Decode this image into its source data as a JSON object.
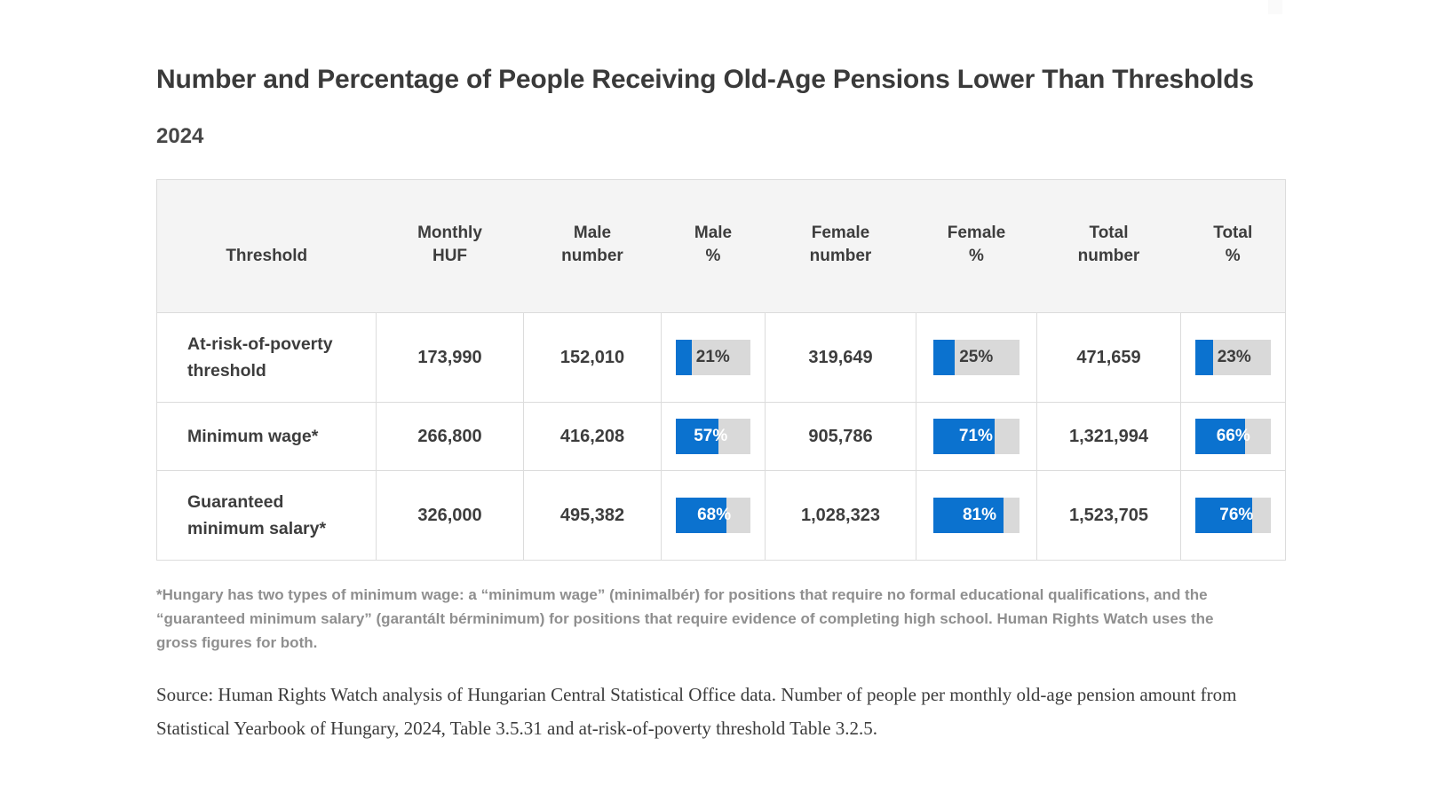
{
  "page": {
    "title": "Number and Percentage of People Receiving Old-Age Pensions Lower Than Thresholds",
    "subtitle": "2024",
    "footnote": "*Hungary has two types of minimum wage: a “minimum wage” (minimalbér) for positions that require no formal educational qualifications, and the “guaranteed minimum salary” (garantált bérminimum) for positions that require evidence of completing high school. Human Rights Watch uses the gross figures for both.",
    "source": "Source: Human Rights Watch analysis of Hungarian Central Statistical Office data. Number of people per monthly old-age pension amount from Statistical Yearbook of Hungary, 2024, Table 3.5.31 and at-risk-of-poverty threshold Table 3.2.5."
  },
  "chart_data": {
    "type": "table",
    "title": "Number and Percentage of People Receiving Old-Age Pensions Lower Than Thresholds",
    "subtitle": "2024",
    "columns": [
      {
        "key": "threshold",
        "label": "Threshold",
        "type": "label"
      },
      {
        "key": "monthly_huf",
        "label": "Monthly\nHUF",
        "type": "number"
      },
      {
        "key": "male_number",
        "label": "Male\nnumber",
        "type": "number"
      },
      {
        "key": "male_pct",
        "label": "Male\n%",
        "type": "percent"
      },
      {
        "key": "female_number",
        "label": "Female\nnumber",
        "type": "number"
      },
      {
        "key": "female_pct",
        "label": "Female\n%",
        "type": "percent"
      },
      {
        "key": "total_number",
        "label": "Total\nnumber",
        "type": "number"
      },
      {
        "key": "total_pct",
        "label": "Total\n%",
        "type": "percent"
      }
    ],
    "rows": [
      {
        "threshold": "At-risk-of-poverty threshold",
        "monthly_huf": "173,990",
        "male_number": "152,010",
        "male_pct": 21,
        "female_number": "319,649",
        "female_pct": 25,
        "total_number": "471,659",
        "total_pct": 23
      },
      {
        "threshold": "Minimum wage*",
        "monthly_huf": "266,800",
        "male_number": "416,208",
        "male_pct": 57,
        "female_number": "905,786",
        "female_pct": 71,
        "total_number": "1,321,994",
        "total_pct": 66
      },
      {
        "threshold": "Guaranteed minimum salary*",
        "monthly_huf": "326,000",
        "male_number": "495,382",
        "male_pct": 68,
        "female_number": "1,028,323",
        "female_pct": 81,
        "total_number": "1,523,705",
        "total_pct": 76
      }
    ],
    "percent_scale_max": 100,
    "colors": {
      "bar": "#0b72cf",
      "track": "#d9d9d9",
      "header_bg": "#f4f4f4",
      "border": "#dcdcdc"
    }
  }
}
